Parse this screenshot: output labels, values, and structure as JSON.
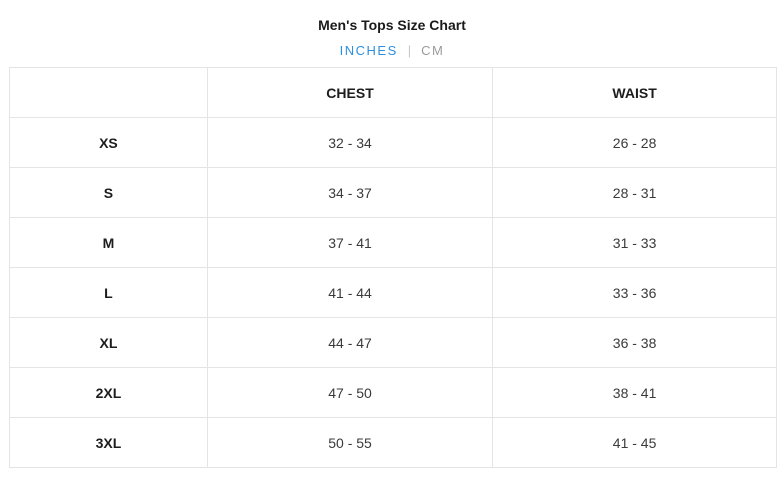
{
  "header": {
    "title": "Men's Tops Size Chart"
  },
  "unit_toggle": {
    "inches_label": "INCHES",
    "separator": "|",
    "cm_label": "CM",
    "selected": "INCHES"
  },
  "colors": {
    "accent_blue": "#2e90de",
    "inactive_gray": "#9b9b9b",
    "border_gray": "#e4e4e4"
  },
  "table": {
    "columns": [
      "",
      "CHEST",
      "WAIST"
    ],
    "rows": [
      {
        "size": "XS",
        "chest": "32 - 34",
        "waist": "26 - 28"
      },
      {
        "size": "S",
        "chest": "34 - 37",
        "waist": "28 - 31"
      },
      {
        "size": "M",
        "chest": "37 - 41",
        "waist": "31 - 33"
      },
      {
        "size": "L",
        "chest": "41 - 44",
        "waist": "33 - 36"
      },
      {
        "size": "XL",
        "chest": "44 - 47",
        "waist": "36 - 38"
      },
      {
        "size": "2XL",
        "chest": "47 - 50",
        "waist": "38 - 41"
      },
      {
        "size": "3XL",
        "chest": "50 - 55",
        "waist": "41 - 45"
      }
    ]
  }
}
